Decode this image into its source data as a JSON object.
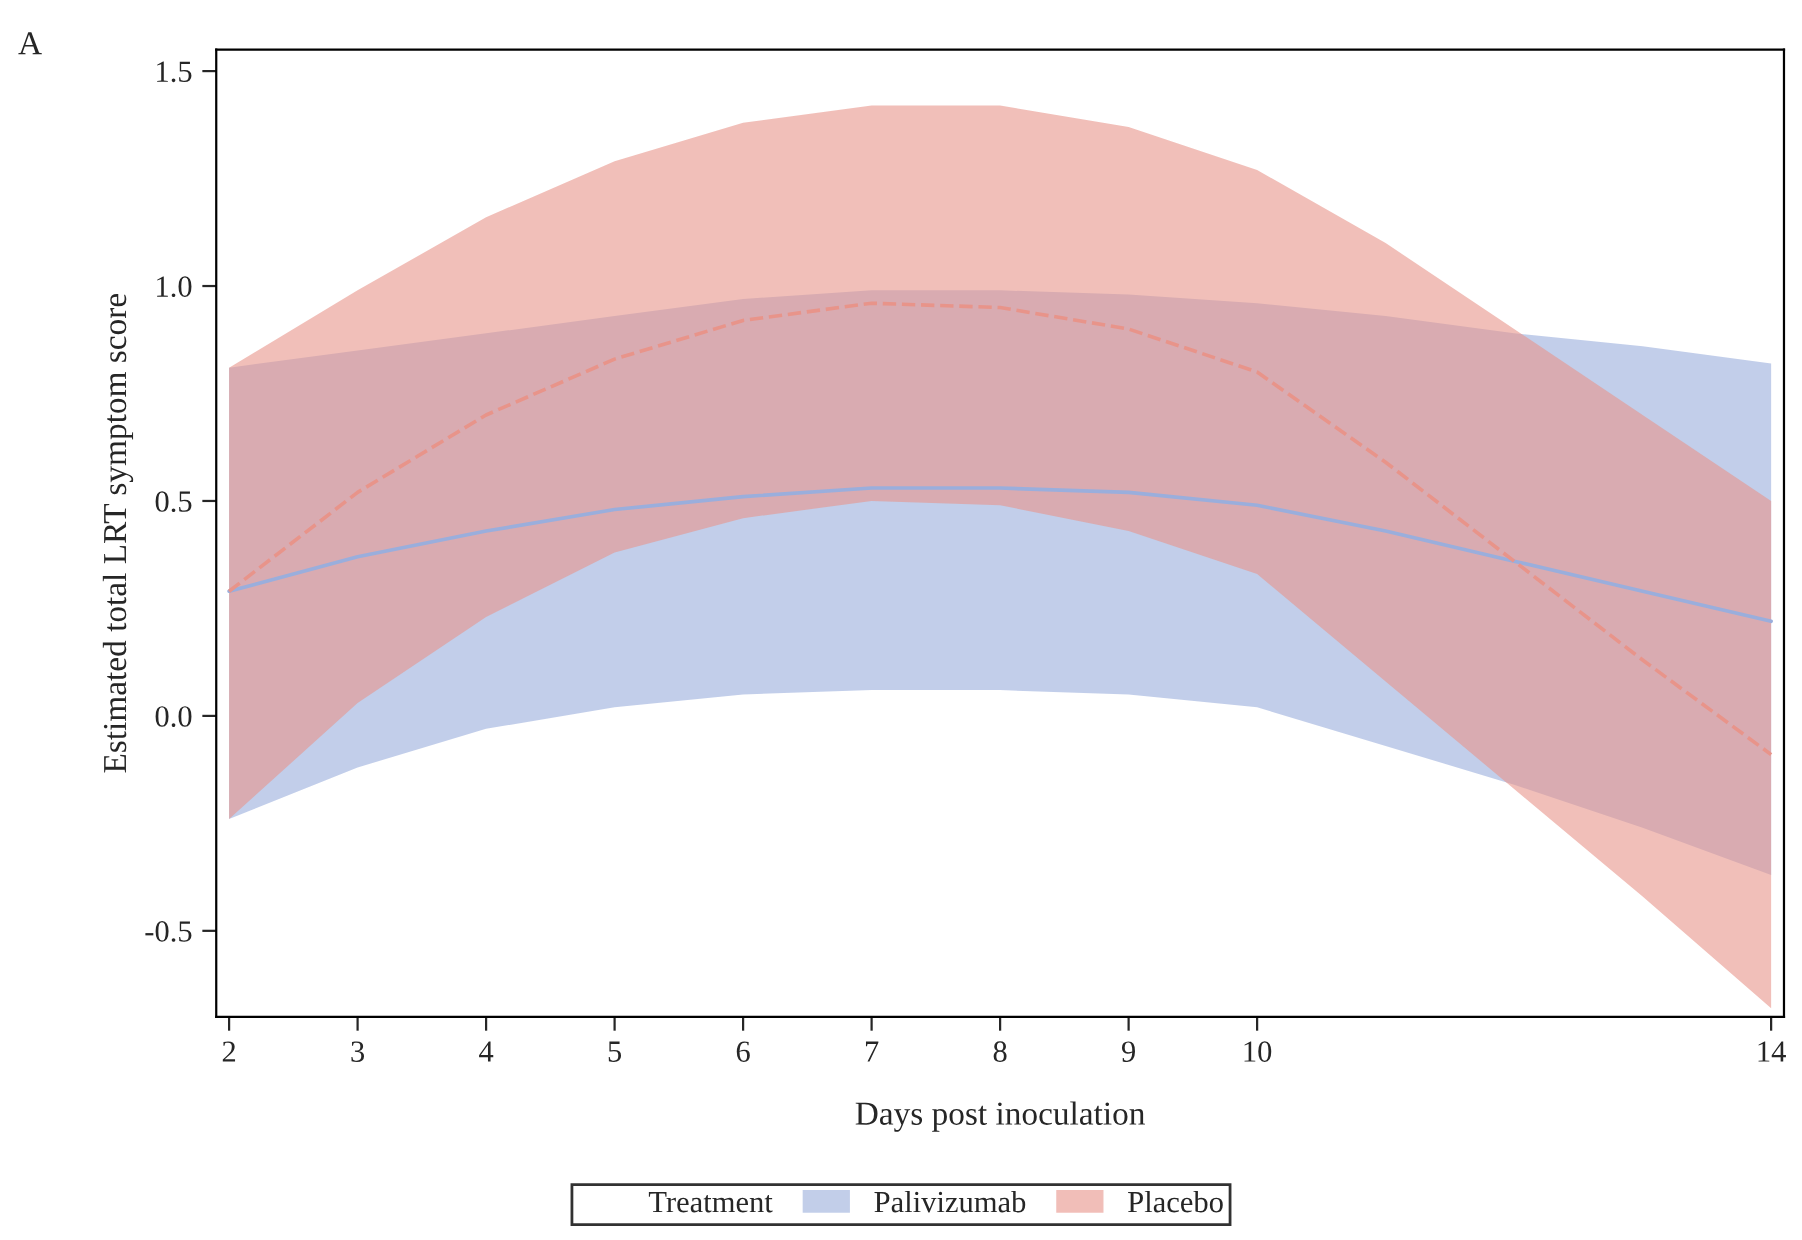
{
  "chart_data": {
    "type": "line",
    "xlabel": "Days post inoculation",
    "ylabel": "Estimated total LRT symptom score",
    "legend_title": "Treatment",
    "legend": "bottom",
    "grid": false,
    "marker": "none",
    "annotations": [
      "A"
    ],
    "x": [
      2,
      3,
      4,
      5,
      6,
      7,
      8,
      9,
      10,
      11,
      12,
      13,
      14
    ],
    "xlim": [
      1.9,
      14.1
    ],
    "xticks": [
      2,
      3,
      4,
      5,
      6,
      7,
      8,
      9,
      10,
      14
    ],
    "ylim": [
      -0.7,
      1.55
    ],
    "yticks": [
      {
        "value": -0.5,
        "label": "-0.5"
      },
      {
        "value": 0,
        "label": "0.0"
      },
      {
        "value": 0.5,
        "label": "0.5"
      },
      {
        "value": 1,
        "label": "1.0"
      },
      {
        "value": 1.5,
        "label": "1.5"
      }
    ],
    "series": [
      {
        "name": "Palivizumab",
        "color": "#9aaedc",
        "line_style": "solid",
        "values": [
          0.29,
          0.37,
          0.43,
          0.48,
          0.51,
          0.53,
          0.53,
          0.52,
          0.49,
          0.43,
          0.36,
          0.29,
          0.22
        ],
        "lower": [
          -0.24,
          -0.12,
          -0.03,
          0.02,
          0.05,
          0.06,
          0.06,
          0.05,
          0.02,
          -0.07,
          -0.16,
          -0.26,
          -0.37
        ],
        "upper": [
          0.81,
          0.85,
          0.89,
          0.93,
          0.97,
          0.99,
          0.99,
          0.98,
          0.96,
          0.93,
          0.89,
          0.86,
          0.82
        ]
      },
      {
        "name": "Placebo",
        "color": "#e8948a",
        "line_style": "dashed",
        "values": [
          0.29,
          0.52,
          0.7,
          0.83,
          0.92,
          0.96,
          0.95,
          0.9,
          0.8,
          0.59,
          0.36,
          0.13,
          -0.09
        ],
        "lower": [
          -0.24,
          0.03,
          0.23,
          0.38,
          0.46,
          0.5,
          0.49,
          0.43,
          0.33,
          0.08,
          -0.17,
          -0.42,
          -0.68
        ],
        "upper": [
          0.81,
          0.99,
          1.16,
          1.29,
          1.38,
          1.42,
          1.42,
          1.37,
          1.27,
          1.1,
          0.9,
          0.7,
          0.5
        ]
      }
    ]
  }
}
